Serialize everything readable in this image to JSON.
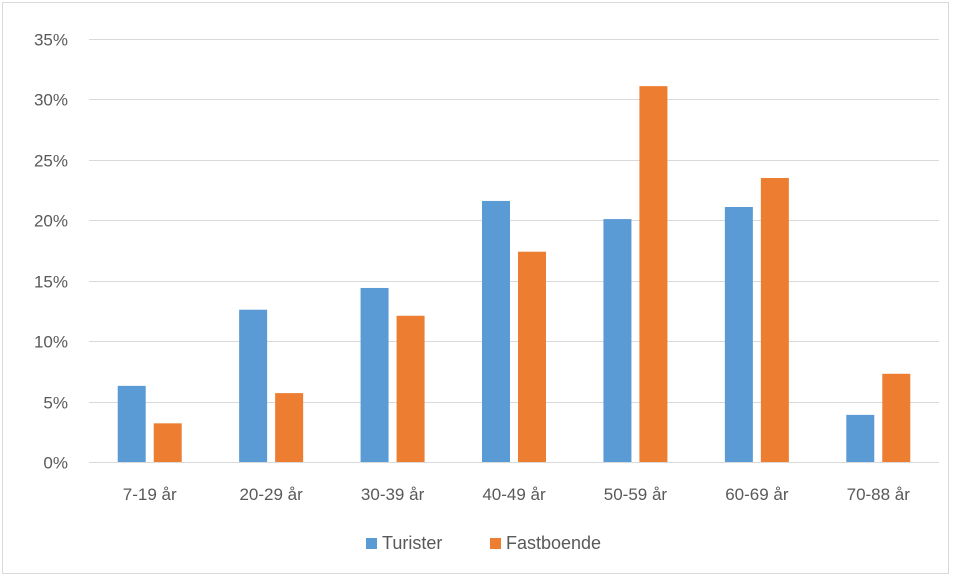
{
  "chart_data": {
    "type": "bar",
    "categories": [
      "7-19 år",
      "20-29 år",
      "30-39 år",
      "40-49 år",
      "50-59 år",
      "60-69 år",
      "70-88 år"
    ],
    "series": [
      {
        "name": "Turister",
        "values": [
          6.3,
          12.6,
          14.4,
          21.6,
          20.1,
          21.1,
          3.9
        ],
        "color": "#5b9bd5"
      },
      {
        "name": "Fastboende",
        "values": [
          3.2,
          5.7,
          12.1,
          17.4,
          31.1,
          23.5,
          7.3
        ],
        "color": "#ed7d31"
      }
    ],
    "ylim": [
      0,
      35
    ],
    "yticks": [
      0,
      5,
      10,
      15,
      20,
      25,
      30,
      35
    ],
    "ytick_labels": [
      "0%",
      "5%",
      "10%",
      "15%",
      "20%",
      "25%",
      "30%",
      "35%"
    ],
    "grid": true,
    "legend_position": "bottom",
    "title": "",
    "xlabel": "",
    "ylabel": ""
  }
}
